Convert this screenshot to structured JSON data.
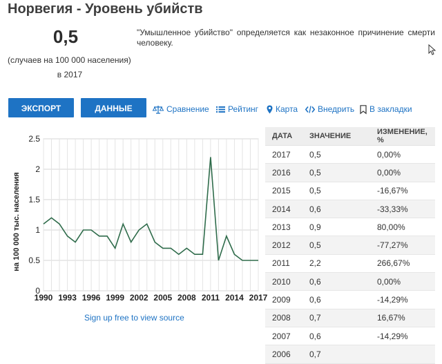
{
  "header": {
    "title": "Норвегия - Уровень убийств",
    "value": "0,5",
    "unit": "(случаев на 100 000 населения)",
    "year": "в 2017",
    "definition": "\"Умышленное убийство\" определяется как незаконное причинение смерти человеку."
  },
  "toolbar": {
    "export_label": "ЭКСПОРТ",
    "data_label": "ДАННЫЕ",
    "compare_label": "Сравнение",
    "rating_label": "Рейтинг",
    "map_label": "Карта",
    "embed_label": "Внедрить",
    "bookmark_label": "В закладки"
  },
  "chart_data": {
    "type": "line",
    "ylabel": "на 100 000 тыс. населения",
    "xlabel": "",
    "ylim": [
      0,
      2.5
    ],
    "yticks": [
      "0",
      "0.5",
      "1",
      "1.5",
      "2",
      "2.5"
    ],
    "xticks": [
      "1990",
      "1993",
      "1996",
      "1999",
      "2002",
      "2005",
      "2008",
      "2011",
      "2014",
      "2017"
    ],
    "grid": true,
    "line_color": "#2e6b4a",
    "x": [
      1990,
      1991,
      1992,
      1993,
      1994,
      1995,
      1996,
      1997,
      1998,
      1999,
      2000,
      2001,
      2002,
      2003,
      2004,
      2005,
      2006,
      2007,
      2008,
      2009,
      2010,
      2011,
      2012,
      2013,
      2014,
      2015,
      2016,
      2017
    ],
    "values": [
      1.1,
      1.2,
      1.1,
      0.9,
      0.8,
      1.0,
      1.0,
      0.9,
      0.9,
      0.7,
      1.1,
      0.8,
      1.0,
      1.1,
      0.8,
      0.7,
      0.7,
      0.6,
      0.7,
      0.6,
      0.6,
      2.2,
      0.5,
      0.9,
      0.6,
      0.5,
      0.5,
      0.5
    ]
  },
  "source_link": "Sign up free to view source",
  "table": {
    "headers": [
      "ДАТА",
      "ЗНАЧЕНИЕ",
      "ИЗМЕНЕНИЕ, %"
    ],
    "rows": [
      [
        "2017",
        "0,5",
        "0,00%"
      ],
      [
        "2016",
        "0,5",
        "0,00%"
      ],
      [
        "2015",
        "0,5",
        "-16,67%"
      ],
      [
        "2014",
        "0,6",
        "-33,33%"
      ],
      [
        "2013",
        "0,9",
        "80,00%"
      ],
      [
        "2012",
        "0,5",
        "-77,27%"
      ],
      [
        "2011",
        "2,2",
        "266,67%"
      ],
      [
        "2010",
        "0,6",
        "0,00%"
      ],
      [
        "2009",
        "0,6",
        "-14,29%"
      ],
      [
        "2008",
        "0,7",
        "16,67%"
      ],
      [
        "2007",
        "0,6",
        "-14,29%"
      ],
      [
        "2006",
        "0,7",
        ""
      ]
    ]
  },
  "icons": {
    "compare": "scales-icon",
    "rating": "list-icon",
    "map": "map-pin-icon",
    "embed": "code-icon",
    "bookmark": "bookmark-icon"
  },
  "colors": {
    "accent": "#1e73c4",
    "line": "#2e6b4a"
  }
}
